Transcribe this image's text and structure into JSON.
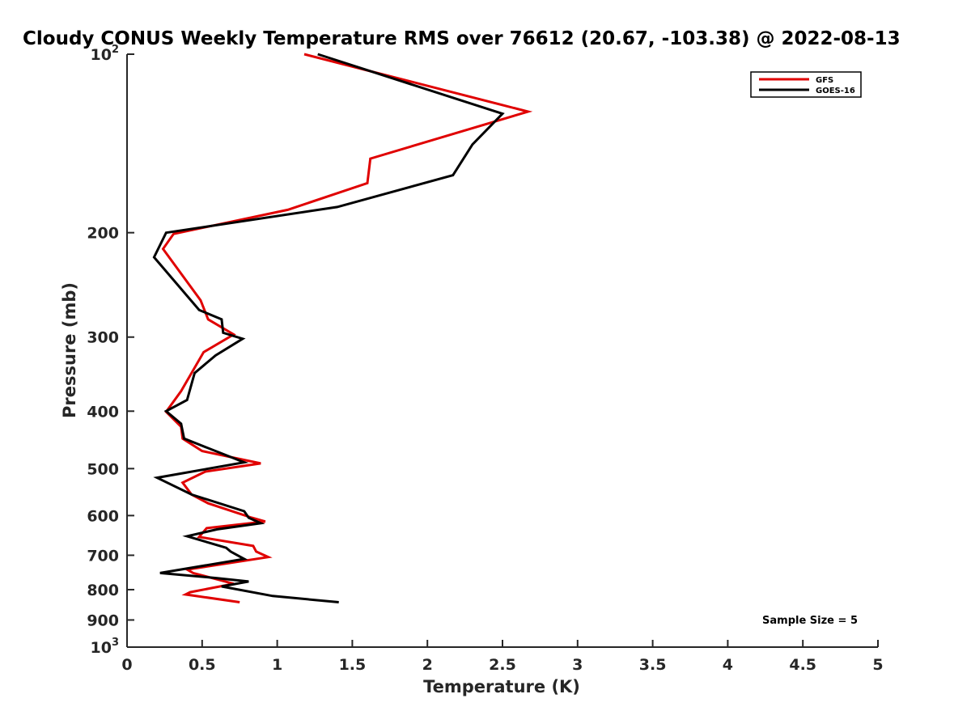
{
  "chart_data": {
    "type": "line",
    "title": "Cloudy CONUS Weekly Temperature RMS over 76612 (20.67, -103.38) @ 2022-08-13",
    "xlabel": "Temperature (K)",
    "ylabel": "Pressure (mb)",
    "xlim": [
      0,
      5
    ],
    "ylim": [
      100,
      1000
    ],
    "yscale": "log",
    "y_reversed": true,
    "grid": false,
    "legend_position": "top-right",
    "x_ticks": [
      0,
      0.5,
      1,
      1.5,
      2,
      2.5,
      3,
      3.5,
      4,
      4.5,
      5
    ],
    "x_tick_labels": [
      "0",
      "0.5",
      "1",
      "1.5",
      "2",
      "2.5",
      "3",
      "3.5",
      "4",
      "4.5",
      "5"
    ],
    "y_ticks": [
      100,
      200,
      300,
      400,
      500,
      600,
      700,
      800,
      900,
      1000
    ],
    "y_tick_labels": [
      {
        "base": "10",
        "exp": "2"
      },
      {
        "base": "200",
        "exp": ""
      },
      {
        "base": "300",
        "exp": ""
      },
      {
        "base": "400",
        "exp": ""
      },
      {
        "base": "500",
        "exp": ""
      },
      {
        "base": "600",
        "exp": ""
      },
      {
        "base": "700",
        "exp": ""
      },
      {
        "base": "800",
        "exp": ""
      },
      {
        "base": "900",
        "exp": ""
      },
      {
        "base": "10",
        "exp": "3"
      }
    ],
    "series": [
      {
        "name": "GFS",
        "color": "#e00000",
        "points": [
          [
            1.18,
            100
          ],
          [
            2.67,
            125
          ],
          [
            1.62,
            150
          ],
          [
            1.6,
            165
          ],
          [
            1.07,
            183
          ],
          [
            0.31,
            201
          ],
          [
            0.24,
            213
          ],
          [
            0.49,
            260
          ],
          [
            0.54,
            280
          ],
          [
            0.71,
            297
          ],
          [
            0.51,
            318
          ],
          [
            0.36,
            370
          ],
          [
            0.26,
            401
          ],
          [
            0.36,
            425
          ],
          [
            0.37,
            445
          ],
          [
            0.5,
            467
          ],
          [
            0.89,
            490
          ],
          [
            0.52,
            506
          ],
          [
            0.37,
            528
          ],
          [
            0.43,
            553
          ],
          [
            0.54,
            572
          ],
          [
            0.83,
            605
          ],
          [
            0.92,
            614
          ],
          [
            0.53,
            630
          ],
          [
            0.48,
            652
          ],
          [
            0.84,
            675
          ],
          [
            0.86,
            690
          ],
          [
            0.94,
            705
          ],
          [
            0.4,
            740
          ],
          [
            0.44,
            750
          ],
          [
            0.71,
            782
          ],
          [
            0.42,
            808
          ],
          [
            0.39,
            815
          ],
          [
            0.75,
            840
          ]
        ]
      },
      {
        "name": "GOES-16",
        "color": "#000000",
        "points": [
          [
            1.27,
            100
          ],
          [
            2.5,
            126
          ],
          [
            2.3,
            142
          ],
          [
            2.17,
            160
          ],
          [
            1.4,
            181
          ],
          [
            0.26,
            200
          ],
          [
            0.18,
            220
          ],
          [
            0.48,
            270
          ],
          [
            0.63,
            280
          ],
          [
            0.64,
            295
          ],
          [
            0.77,
            302
          ],
          [
            0.59,
            322
          ],
          [
            0.45,
            345
          ],
          [
            0.4,
            383
          ],
          [
            0.26,
            400
          ],
          [
            0.36,
            420
          ],
          [
            0.38,
            445
          ],
          [
            0.78,
            488
          ],
          [
            0.2,
            518
          ],
          [
            0.43,
            553
          ],
          [
            0.78,
            590
          ],
          [
            0.81,
            605
          ],
          [
            0.89,
            618
          ],
          [
            0.6,
            633
          ],
          [
            0.4,
            650
          ],
          [
            0.66,
            680
          ],
          [
            0.69,
            690
          ],
          [
            0.78,
            710
          ],
          [
            0.22,
            750
          ],
          [
            0.6,
            765
          ],
          [
            0.81,
            775
          ],
          [
            0.63,
            790
          ],
          [
            0.97,
            820
          ],
          [
            1.41,
            840
          ]
        ]
      }
    ],
    "annotations": [
      "Sample Size = 5"
    ]
  }
}
